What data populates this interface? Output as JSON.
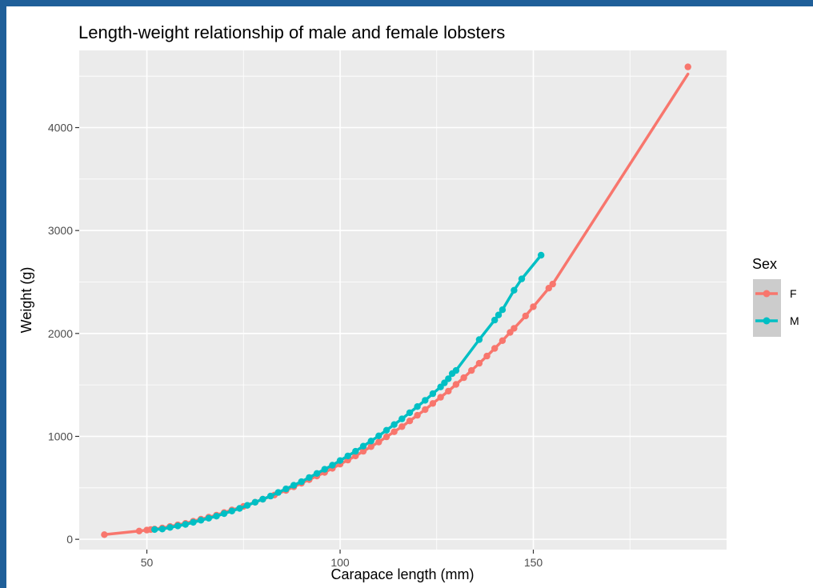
{
  "chart_data": {
    "type": "line",
    "title": "Length-weight relationship of male and female lobsters",
    "xlabel": "Carapace length (mm)",
    "ylabel": "Weight (g)",
    "xlim": [
      32.5,
      200
    ],
    "ylim": [
      -100,
      4750
    ],
    "x_ticks": [
      50,
      100,
      150
    ],
    "y_ticks": [
      0,
      1000,
      2000,
      3000,
      4000
    ],
    "grid": true,
    "legend_placement": "right",
    "legend_title": "Sex",
    "series": [
      {
        "name": "F",
        "color": "#f8766d",
        "points": [
          [
            39,
            45
          ],
          [
            48,
            80
          ],
          [
            50,
            90
          ],
          [
            51,
            95
          ],
          [
            52,
            100
          ],
          [
            54,
            110
          ],
          [
            56,
            125
          ],
          [
            58,
            140
          ],
          [
            60,
            155
          ],
          [
            62,
            175
          ],
          [
            64,
            195
          ],
          [
            66,
            215
          ],
          [
            68,
            235
          ],
          [
            70,
            260
          ],
          [
            72,
            285
          ],
          [
            75,
            320
          ],
          [
            78,
            360
          ],
          [
            80,
            390
          ],
          [
            83,
            430
          ],
          [
            86,
            475
          ],
          [
            88,
            510
          ],
          [
            90,
            545
          ],
          [
            92,
            580
          ],
          [
            94,
            615
          ],
          [
            96,
            650
          ],
          [
            98,
            690
          ],
          [
            100,
            730
          ],
          [
            102,
            770
          ],
          [
            104,
            810
          ],
          [
            106,
            855
          ],
          [
            108,
            900
          ],
          [
            110,
            945
          ],
          [
            112,
            995
          ],
          [
            114,
            1045
          ],
          [
            116,
            1095
          ],
          [
            118,
            1150
          ],
          [
            120,
            1205
          ],
          [
            122,
            1260
          ],
          [
            124,
            1320
          ],
          [
            126,
            1380
          ],
          [
            128,
            1440
          ],
          [
            130,
            1505
          ],
          [
            132,
            1570
          ],
          [
            134,
            1640
          ],
          [
            136,
            1710
          ],
          [
            138,
            1780
          ],
          [
            140,
            1855
          ],
          [
            142,
            1930
          ],
          [
            144,
            2010
          ],
          [
            145,
            2050
          ],
          [
            148,
            2170
          ],
          [
            150,
            2260
          ],
          [
            154,
            2440
          ],
          [
            155,
            2480
          ],
          [
            190,
            4590
          ]
        ],
        "fit_end": [
          190,
          4520
        ]
      },
      {
        "name": "M",
        "color": "#00bfc4",
        "points": [
          [
            52,
            95
          ],
          [
            54,
            100
          ],
          [
            56,
            115
          ],
          [
            58,
            130
          ],
          [
            60,
            145
          ],
          [
            62,
            165
          ],
          [
            64,
            185
          ],
          [
            66,
            205
          ],
          [
            68,
            225
          ],
          [
            70,
            250
          ],
          [
            72,
            275
          ],
          [
            74,
            300
          ],
          [
            76,
            330
          ],
          [
            78,
            360
          ],
          [
            80,
            390
          ],
          [
            82,
            420
          ],
          [
            84,
            455
          ],
          [
            86,
            490
          ],
          [
            88,
            525
          ],
          [
            90,
            560
          ],
          [
            92,
            600
          ],
          [
            94,
            640
          ],
          [
            96,
            680
          ],
          [
            98,
            720
          ],
          [
            100,
            765
          ],
          [
            102,
            810
          ],
          [
            104,
            855
          ],
          [
            106,
            905
          ],
          [
            108,
            955
          ],
          [
            110,
            1005
          ],
          [
            112,
            1060
          ],
          [
            114,
            1115
          ],
          [
            116,
            1170
          ],
          [
            118,
            1230
          ],
          [
            120,
            1290
          ],
          [
            122,
            1350
          ],
          [
            124,
            1415
          ],
          [
            126,
            1480
          ],
          [
            127,
            1520
          ],
          [
            128,
            1560
          ],
          [
            129,
            1610
          ],
          [
            130,
            1640
          ],
          [
            136,
            1940
          ],
          [
            140,
            2130
          ],
          [
            141,
            2180
          ],
          [
            142,
            2230
          ],
          [
            145,
            2420
          ],
          [
            147,
            2530
          ],
          [
            152,
            2760
          ]
        ]
      }
    ]
  }
}
